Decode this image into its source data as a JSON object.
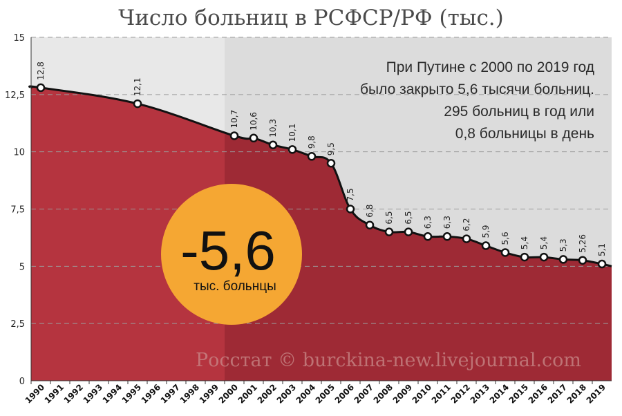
{
  "chart_data": {
    "type": "area",
    "title": "Число больниц в РСФСР/РФ (тыс.)",
    "categories": [
      "1990",
      "1991",
      "1992",
      "1993",
      "1994",
      "1995",
      "1996",
      "1997",
      "1998",
      "1999",
      "2000",
      "2001",
      "2002",
      "2003",
      "2004",
      "2005",
      "2006",
      "2007",
      "2008",
      "2009",
      "2010",
      "2011",
      "2012",
      "2013",
      "2014",
      "2015",
      "2016",
      "2017",
      "2018",
      "2019"
    ],
    "series": [
      {
        "name": "Число больниц (тыс.)",
        "points": [
          {
            "year": 1990,
            "value": 12.8,
            "label": "12,8"
          },
          {
            "year": 1995,
            "value": 12.1,
            "label": "12,1"
          },
          {
            "year": 2000,
            "value": 10.7,
            "label": "10,7"
          },
          {
            "year": 2001,
            "value": 10.6,
            "label": "10,6"
          },
          {
            "year": 2002,
            "value": 10.3,
            "label": "10,3"
          },
          {
            "year": 2003,
            "value": 10.1,
            "label": "10,1"
          },
          {
            "year": 2004,
            "value": 9.8,
            "label": "9,8"
          },
          {
            "year": 2005,
            "value": 9.5,
            "label": "9,5"
          },
          {
            "year": 2006,
            "value": 7.5,
            "label": "7,5"
          },
          {
            "year": 2007,
            "value": 6.8,
            "label": "6,8"
          },
          {
            "year": 2008,
            "value": 6.5,
            "label": "6,5"
          },
          {
            "year": 2009,
            "value": 6.5,
            "label": "6,5"
          },
          {
            "year": 2010,
            "value": 6.3,
            "label": "6,3"
          },
          {
            "year": 2011,
            "value": 6.3,
            "label": "6,3"
          },
          {
            "year": 2012,
            "value": 6.2,
            "label": "6,2"
          },
          {
            "year": 2013,
            "value": 5.9,
            "label": "5,9"
          },
          {
            "year": 2014,
            "value": 5.6,
            "label": "5,6"
          },
          {
            "year": 2015,
            "value": 5.4,
            "label": "5,4"
          },
          {
            "year": 2016,
            "value": 5.4,
            "label": "5,4"
          },
          {
            "year": 2017,
            "value": 5.3,
            "label": "5,3"
          },
          {
            "year": 2018,
            "value": 5.26,
            "label": "5,26"
          },
          {
            "year": 2019,
            "value": 5.1,
            "label": "5,1"
          }
        ]
      }
    ],
    "y_ticks": [
      {
        "value": 0,
        "label": "0"
      },
      {
        "value": 2.5,
        "label": "2,5"
      },
      {
        "value": 5,
        "label": "5"
      },
      {
        "value": 7.5,
        "label": "7,5"
      },
      {
        "value": 10,
        "label": "10"
      },
      {
        "value": 12.5,
        "label": "12,5"
      },
      {
        "value": 15,
        "label": "15"
      }
    ],
    "ylim": [
      0,
      15
    ],
    "xlim": [
      1990,
      2020
    ],
    "highlight_from_year": 2000,
    "grid": "horizontal-dashed",
    "annotation_lines": [
      "При Путине с 2000 по 2019 год",
      "было закрыто 5,6 тысячи больниц.",
      "295 больниц в год или",
      "0,8 больницы в день"
    ],
    "badge": {
      "value": "-5,6",
      "caption": "тыс. больнцы"
    },
    "watermark": "Росстат © burckina-new.livejournal.com"
  },
  "colors": {
    "area": "#b5343f",
    "area_highlight": "#9e2a35",
    "background": "#e8e8e8",
    "background_highlight": "#dcdcdc",
    "line": "#111111",
    "marker_fill": "#ffffff",
    "badge": "#f5a733",
    "grid": "#9a9a9a"
  }
}
